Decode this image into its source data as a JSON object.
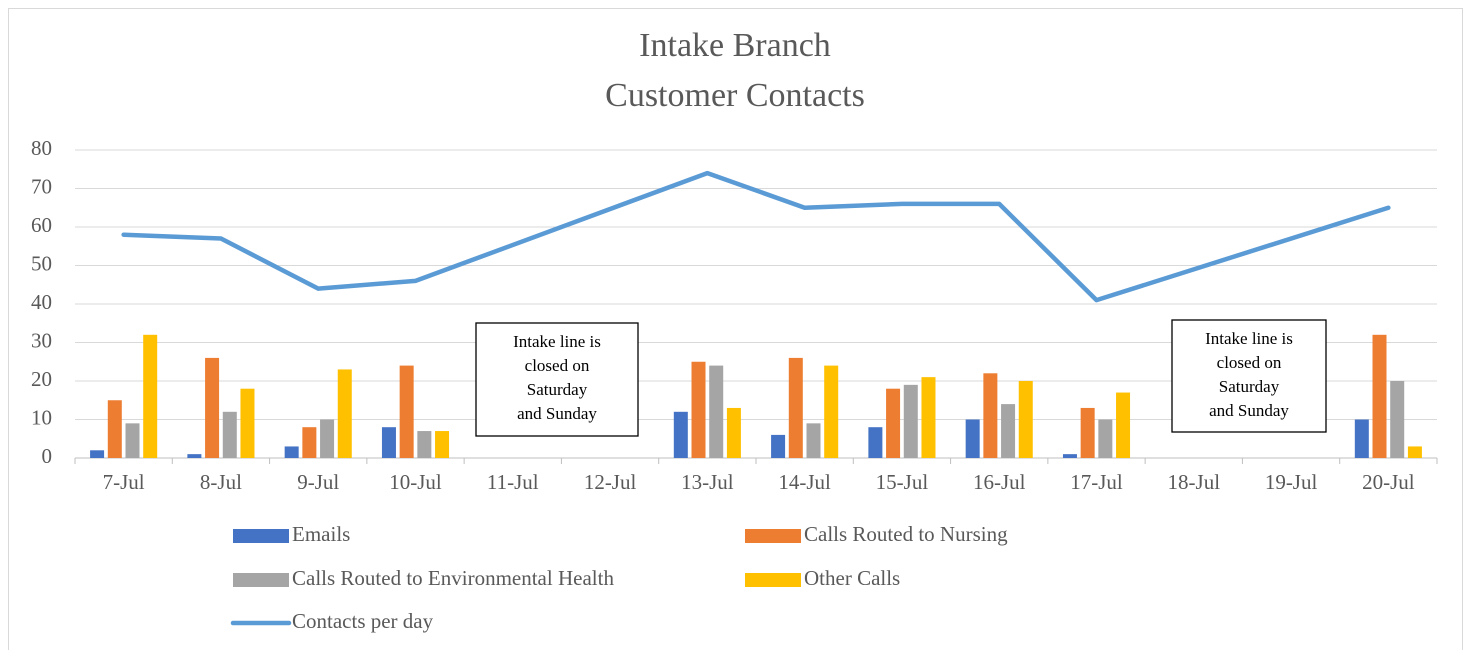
{
  "chart_data": {
    "type": "bar_line",
    "title": "Intake Branch",
    "subtitle": "Customer Contacts",
    "categories": [
      "7-Jul",
      "8-Jul",
      "9-Jul",
      "10-Jul",
      "11-Jul",
      "12-Jul",
      "13-Jul",
      "14-Jul",
      "15-Jul",
      "16-Jul",
      "17-Jul",
      "18-Jul",
      "19-Jul",
      "20-Jul"
    ],
    "series": [
      {
        "name": "Emails",
        "color": "#4472c4",
        "type": "bar",
        "values": [
          2,
          1,
          3,
          8,
          null,
          null,
          12,
          6,
          8,
          10,
          1,
          null,
          null,
          10
        ]
      },
      {
        "name": "Calls Routed to Nursing",
        "color": "#ed7d31",
        "type": "bar",
        "values": [
          15,
          26,
          8,
          24,
          null,
          null,
          25,
          26,
          18,
          22,
          13,
          null,
          null,
          32
        ]
      },
      {
        "name": "Calls Routed to Environmental Health",
        "color": "#a5a5a5",
        "type": "bar",
        "values": [
          9,
          12,
          10,
          7,
          null,
          null,
          24,
          9,
          19,
          14,
          10,
          null,
          null,
          20
        ]
      },
      {
        "name": "Other Calls",
        "color": "#ffc000",
        "type": "bar",
        "values": [
          32,
          18,
          23,
          7,
          null,
          null,
          13,
          24,
          21,
          20,
          17,
          null,
          null,
          3
        ]
      },
      {
        "name": "Contacts per day",
        "color": "#5b9bd5",
        "type": "line",
        "values": [
          58,
          57,
          44,
          46,
          null,
          null,
          74,
          65,
          66,
          66,
          41,
          null,
          null,
          65
        ]
      }
    ],
    "connect_gaps": true,
    "ylim": [
      0,
      80
    ],
    "yticks": [
      0,
      10,
      20,
      30,
      40,
      50,
      60,
      70,
      80
    ],
    "grid": true,
    "legend": "bottom",
    "annotations": [
      {
        "lines": [
          "Intake line is",
          "closed on",
          "Saturday",
          "and Sunday"
        ]
      },
      {
        "lines": [
          "Intake line is",
          "closed on",
          "Saturday",
          "and Sunday"
        ]
      }
    ]
  }
}
